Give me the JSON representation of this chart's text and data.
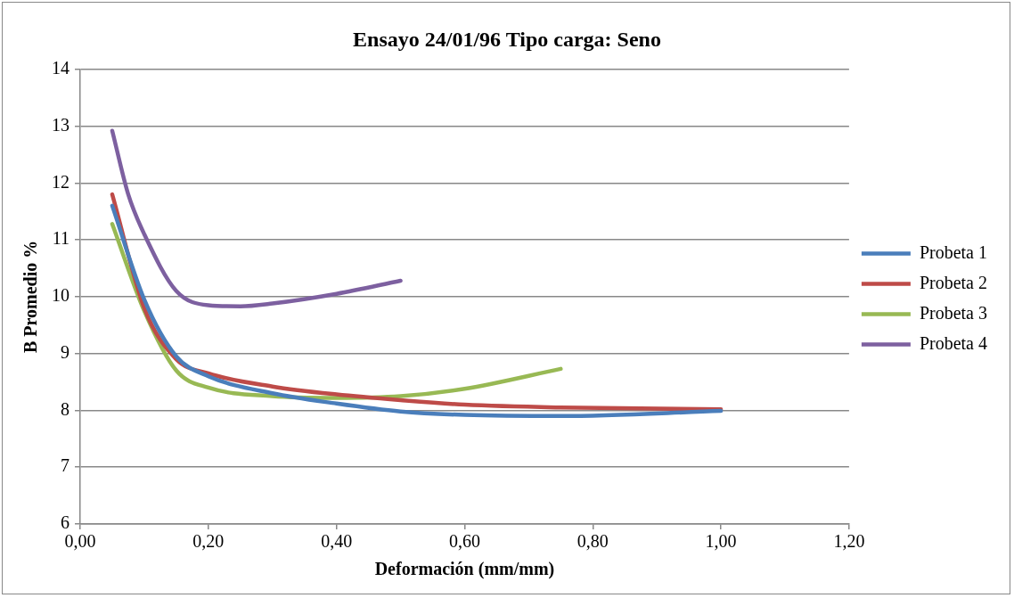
{
  "chart_data": {
    "type": "line",
    "title": "Ensayo 24/01/96 Tipo carga: Seno",
    "xlabel": "Deformación (mm/mm)",
    "ylabel": "B Promedio %",
    "xlim": [
      0,
      1.2
    ],
    "xticks": [
      {
        "value": 0,
        "label": "0,00"
      },
      {
        "value": 0.2,
        "label": "0,20"
      },
      {
        "value": 0.4,
        "label": "0,40"
      },
      {
        "value": 0.6,
        "label": "0,60"
      },
      {
        "value": 0.8,
        "label": "0,80"
      },
      {
        "value": 1,
        "label": "1,00"
      },
      {
        "value": 1.2,
        "label": "1,20"
      }
    ],
    "ylim": [
      6,
      14
    ],
    "yticks": [
      6,
      7,
      8,
      9,
      10,
      11,
      12,
      13,
      14
    ],
    "grid": "y",
    "legend": "right",
    "marker": "none",
    "line_style": "solid",
    "series": [
      {
        "name": "Probeta 1",
        "color": "#4a7ebb",
        "x": [
          0.05,
          0.1,
          0.15,
          0.2,
          0.3,
          0.4,
          0.5,
          0.6,
          0.75,
          1.0
        ],
        "values": [
          11.6,
          9.95,
          8.95,
          8.6,
          8.3,
          8.12,
          7.98,
          7.92,
          7.9,
          7.99
        ]
      },
      {
        "name": "Probeta 2",
        "color": "#be4b48",
        "x": [
          0.05,
          0.1,
          0.15,
          0.2,
          0.3,
          0.4,
          0.5,
          0.6,
          0.75,
          1.0
        ],
        "values": [
          11.8,
          9.8,
          8.9,
          8.65,
          8.42,
          8.28,
          8.18,
          8.1,
          8.05,
          8.02
        ]
      },
      {
        "name": "Probeta 3",
        "color": "#98b954",
        "x": [
          0.05,
          0.1,
          0.15,
          0.2,
          0.3,
          0.4,
          0.5,
          0.6,
          0.75
        ],
        "values": [
          11.28,
          9.75,
          8.7,
          8.4,
          8.25,
          8.22,
          8.25,
          8.38,
          8.73
        ]
      },
      {
        "name": "Probeta 4",
        "color": "#7d60a0",
        "x": [
          0.05,
          0.075,
          0.1,
          0.15,
          0.2,
          0.25,
          0.3,
          0.4,
          0.5
        ],
        "values": [
          12.92,
          11.8,
          11.1,
          10.1,
          9.85,
          9.83,
          9.88,
          10.05,
          10.28
        ]
      }
    ]
  }
}
